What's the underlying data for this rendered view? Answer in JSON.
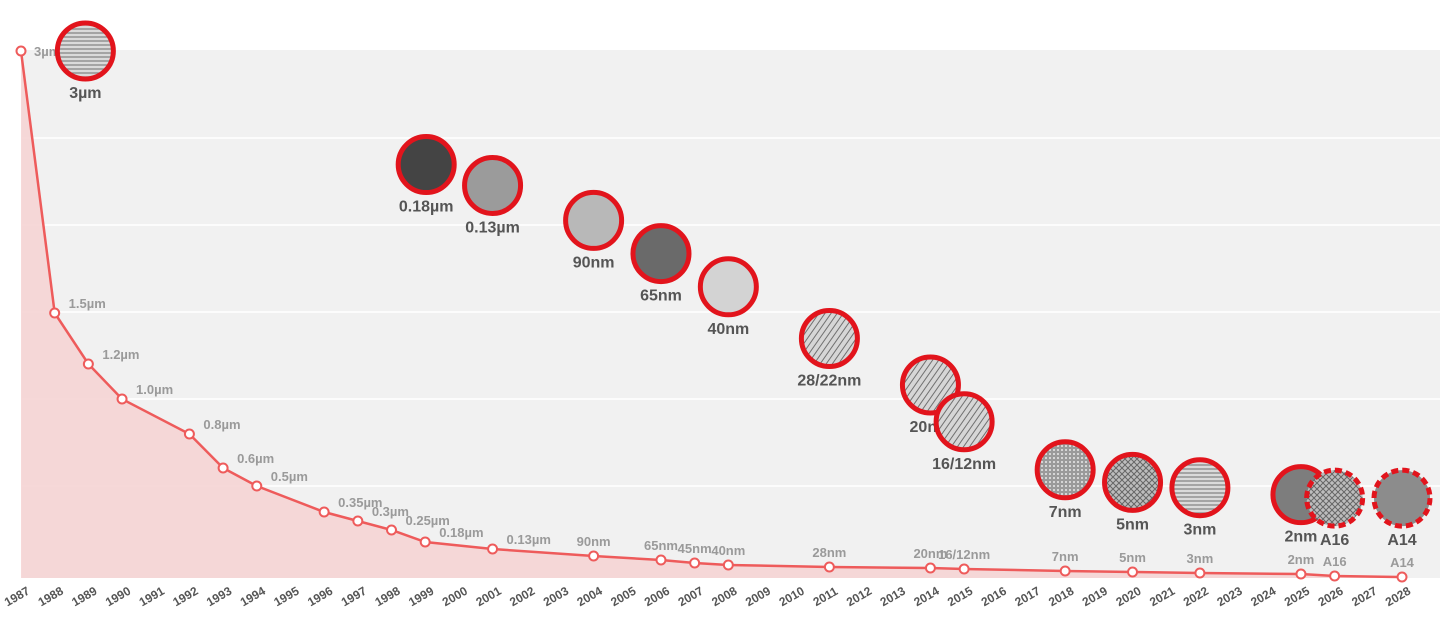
{
  "chart_data": {
    "type": "line",
    "title": "",
    "xlabel": "",
    "ylabel": "",
    "ygrid": true,
    "x_categories": [
      "1987",
      "1988",
      "1989",
      "1990",
      "1991",
      "1992",
      "1993",
      "1994",
      "1995",
      "1996",
      "1997",
      "1998",
      "1999",
      "2000",
      "2001",
      "2002",
      "2003",
      "2004",
      "2005",
      "2006",
      "2007",
      "2008",
      "2009",
      "2010",
      "2011",
      "2012",
      "2013",
      "2014",
      "2015",
      "2016",
      "2017",
      "2018",
      "2019",
      "2020",
      "2021",
      "2022",
      "2023",
      "2024",
      "2025",
      "2026",
      "2027",
      "2028"
    ],
    "series": [
      {
        "points": [
          {
            "year": 1987,
            "value_um": 3.0,
            "label": "3µm"
          },
          {
            "year": 1988,
            "value_um": 1.5,
            "label": "1.5µm"
          },
          {
            "year": 1989,
            "value_um": 1.2,
            "label": "1.2µm"
          },
          {
            "year": 1990,
            "value_um": 1.0,
            "label": "1.0µm"
          },
          {
            "year": 1992,
            "value_um": 0.8,
            "label": "0.8µm"
          },
          {
            "year": 1993,
            "value_um": 0.6,
            "label": "0.6µm"
          },
          {
            "year": 1994,
            "value_um": 0.5,
            "label": "0.5µm"
          },
          {
            "year": 1996,
            "value_um": 0.35,
            "label": "0.35µm"
          },
          {
            "year": 1997,
            "value_um": 0.3,
            "label": "0.3µm"
          },
          {
            "year": 1998,
            "value_um": 0.25,
            "label": "0.25µm"
          },
          {
            "year": 1999,
            "value_um": 0.18,
            "label": "0.18µm"
          },
          {
            "year": 2001,
            "value_um": 0.13,
            "label": "0.13µm"
          },
          {
            "year": 2004,
            "value_um": 0.09,
            "label": "90nm"
          },
          {
            "year": 2006,
            "value_um": 0.065,
            "label": "65nm"
          },
          {
            "year": 2007,
            "value_um": 0.045,
            "label": "45nm"
          },
          {
            "year": 2008,
            "value_um": 0.04,
            "label": "40nm"
          },
          {
            "year": 2011,
            "value_um": 0.028,
            "label": "28nm"
          },
          {
            "year": 2014,
            "value_um": 0.02,
            "label": "20nm"
          },
          {
            "year": 2015,
            "value_um": 0.016,
            "label": "16/12nm"
          },
          {
            "year": 2018,
            "value_um": 0.007,
            "label": "7nm"
          },
          {
            "year": 2020,
            "value_um": 0.005,
            "label": "5nm"
          },
          {
            "year": 2022,
            "value_um": 0.003,
            "label": "3nm"
          },
          {
            "year": 2025,
            "value_um": 0.002,
            "label": "2nm"
          },
          {
            "year": 2026,
            "value_um": 0.0016,
            "label": "A16"
          },
          {
            "year": 2028,
            "value_um": 0.0014,
            "label": "A14"
          }
        ]
      }
    ],
    "badges": [
      {
        "label": "3µm",
        "year": 1989,
        "value_um": 3.0,
        "icon": "micrograph-3um",
        "dashed": false
      },
      {
        "label": "0.18µm",
        "year": 1999,
        "value_um": 2.35,
        "icon": "micrograph-0.18um",
        "dashed": false
      },
      {
        "label": "0.13µm",
        "year": 2001,
        "value_um": 2.23,
        "icon": "micrograph-0.13um",
        "dashed": false
      },
      {
        "label": "90nm",
        "year": 2004,
        "value_um": 2.03,
        "icon": "micrograph-90nm",
        "dashed": false
      },
      {
        "label": "65nm",
        "year": 2006,
        "value_um": 1.84,
        "icon": "micrograph-65nm",
        "dashed": false
      },
      {
        "label": "40nm",
        "year": 2008,
        "value_um": 1.65,
        "icon": "micrograph-40nm",
        "dashed": false
      },
      {
        "label": "28/22nm",
        "year": 2011,
        "value_um": 1.35,
        "icon": "micrograph-28-22nm",
        "dashed": false
      },
      {
        "label": "20nm",
        "year": 2014,
        "value_um": 1.08,
        "icon": "micrograph-20nm",
        "dashed": false
      },
      {
        "label": "16/12nm",
        "year": 2015,
        "value_um": 0.87,
        "icon": "micrograph-16-12nm",
        "dashed": false
      },
      {
        "label": "7nm",
        "year": 2018,
        "value_um": 0.59,
        "icon": "micrograph-7nm",
        "dashed": false
      },
      {
        "label": "5nm",
        "year": 2020,
        "value_um": 0.52,
        "icon": "micrograph-5nm",
        "dashed": false
      },
      {
        "label": "3nm",
        "year": 2022,
        "value_um": 0.49,
        "icon": "micrograph-3nm",
        "dashed": false
      },
      {
        "label": "2nm",
        "year": 2025,
        "value_um": 0.45,
        "icon": "micrograph-2nm",
        "dashed": false
      },
      {
        "label": "A16",
        "year": 2026,
        "value_um": 0.43,
        "icon": "micrograph-A16",
        "dashed": true
      },
      {
        "label": "A14",
        "year": 2028,
        "value_um": 0.43,
        "icon": "micrograph-A14",
        "dashed": true
      }
    ],
    "colors": {
      "line": "#ee5b5b",
      "area": "#f6d2d2",
      "badge_ring": "#e2141c",
      "plot_bg": "#f1f1f1",
      "grid": "#ffffff",
      "point_label": "#9a9a9a",
      "tick_label": "#555555"
    }
  }
}
